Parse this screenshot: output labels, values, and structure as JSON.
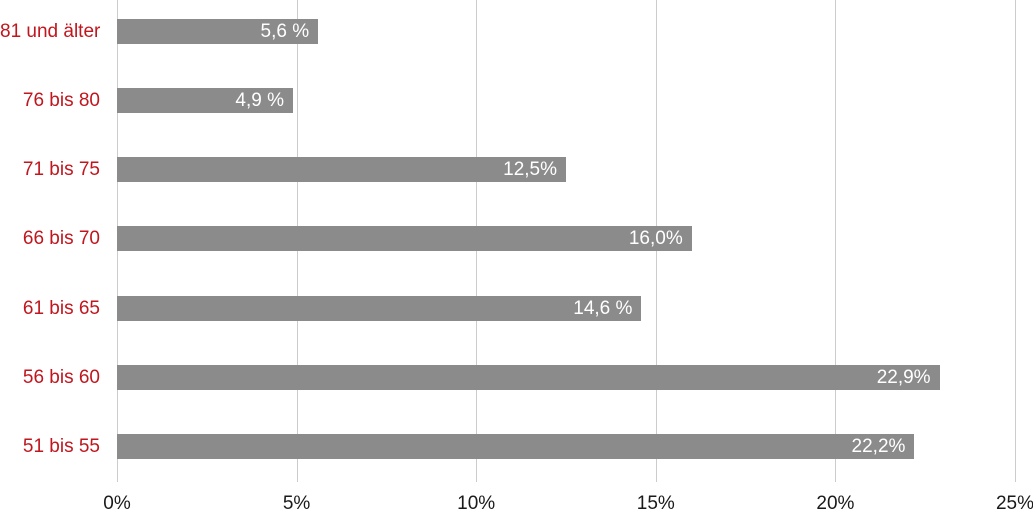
{
  "chart_data": {
    "type": "bar",
    "orientation": "horizontal",
    "title": "",
    "xlabel": "",
    "ylabel": "",
    "categories": [
      "81 und älter",
      "76 bis 80",
      "71 bis 75",
      "66 bis 70",
      "61 bis 65",
      "56 bis 60",
      "51 bis 55"
    ],
    "values": [
      5.6,
      4.9,
      12.5,
      16.0,
      14.6,
      22.9,
      22.2
    ],
    "value_labels": [
      "5,6 %",
      "4,9 %",
      "12,5%",
      "16,0%",
      "14,6 %",
      "22,9%",
      "22,2%"
    ],
    "xlim": [
      0,
      25
    ],
    "x_ticks": [
      0,
      5,
      10,
      15,
      20,
      25
    ],
    "x_tick_labels": [
      "0%",
      "5%",
      "10%",
      "15%",
      "20%",
      "25%"
    ],
    "grid": "vertical-only",
    "legend": "none",
    "colors": {
      "bar": "#8b8b8b",
      "category_label": "#c0161e",
      "value_label": "#ffffff",
      "axis_tick_label": "#1a1a1a",
      "gridline": "#cccccc",
      "background": "#ffffff"
    }
  }
}
